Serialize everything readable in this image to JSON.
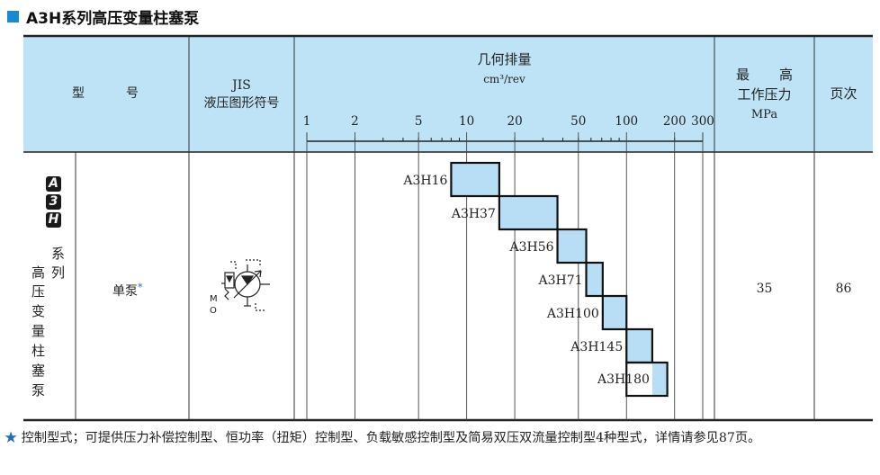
{
  "title": "A3H系列高压变量柱塞泵",
  "colors": {
    "header_bg": "#bfe3f6",
    "bar_fill": "#b7def4",
    "title_square": "#1a8ad0",
    "star": "#1a6fc0"
  },
  "header": {
    "model_left": "型",
    "model_right": "号",
    "jis_line1": "JIS",
    "jis_line2": "液压图形符号",
    "disp_title": "几何排量",
    "disp_unit": "cm³/rev",
    "pressure_line1_a": "最",
    "pressure_line1_b": "高",
    "pressure_line2": "工作压力",
    "pressure_line3": "MPa",
    "page": "页次"
  },
  "scale_ticks": [
    "1",
    "2",
    "5",
    "10",
    "20",
    "50",
    "100",
    "200",
    "300"
  ],
  "series": {
    "badges": [
      "A",
      "3",
      "H"
    ],
    "desc_col1": [
      "系",
      "列"
    ],
    "desc_col0": [
      "高",
      "压",
      "变",
      "量",
      "柱",
      "塞",
      "泵"
    ]
  },
  "row": {
    "type_label": "单泵",
    "star": "*",
    "symbol_icon": "variable-piston-pump-symbol-icon",
    "pressure": "35",
    "page": "86"
  },
  "chart_data": {
    "type": "range-bar",
    "title": "几何排量",
    "xlabel": "cm³/rev",
    "x_scale": "log",
    "xlim": [
      1,
      300
    ],
    "ticks": [
      1,
      2,
      5,
      10,
      20,
      50,
      100,
      200,
      300
    ],
    "series": [
      {
        "name": "A3H16",
        "min": 8,
        "max": 16
      },
      {
        "name": "A3H37",
        "min": 16,
        "max": 37
      },
      {
        "name": "A3H56",
        "min": 37,
        "max": 56
      },
      {
        "name": "A3H71",
        "min": 56,
        "max": 71
      },
      {
        "name": "A3H100",
        "min": 71,
        "max": 100
      },
      {
        "name": "A3H145",
        "min": 100,
        "max": 145
      },
      {
        "name": "A3H180",
        "min": 100,
        "max": 180
      }
    ]
  },
  "footnote": {
    "star": "★",
    "text": "控制型式；可提供压力补偿控制型、恒功率（扭矩）控制型、负载敏感控制型及简易双压双流量控制型4种型式，详情请参见87页。"
  }
}
